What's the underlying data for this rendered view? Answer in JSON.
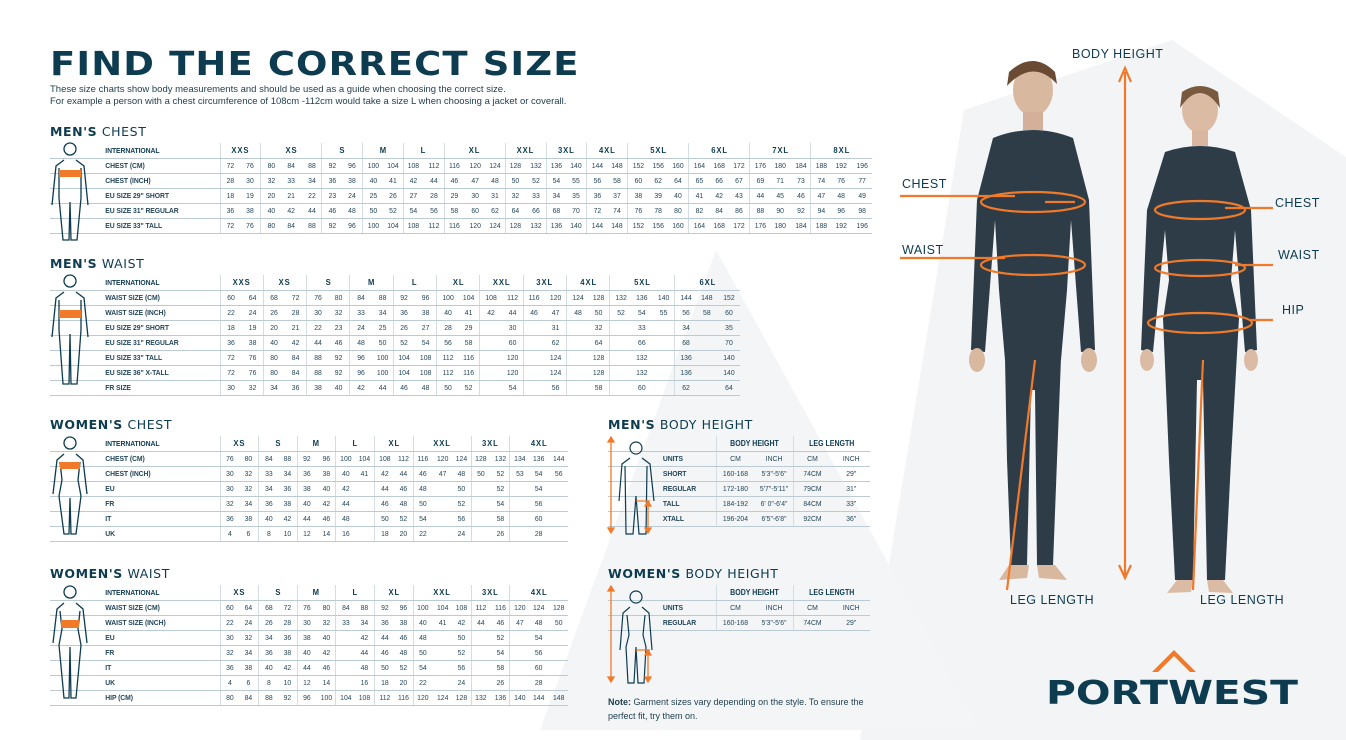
{
  "title": "FIND THE CORRECT SIZE",
  "intro": [
    "These size charts show body measurements and should be used as a guide when choosing the correct size.",
    "For example a person with a chest circumference of 108cm -112cm would take a size L when choosing a jacket or coverall."
  ],
  "colors": {
    "navy": "#0d3b4f",
    "orange": "#f07a2a",
    "line": "#bccbd3"
  },
  "tables": {
    "mens_chest": {
      "heading_bold": "MEN'S",
      "heading_light": "CHEST",
      "header_label": "INTERNATIONAL",
      "groups": [
        [
          "XXS",
          2
        ],
        [
          "XS",
          3
        ],
        [
          "S",
          2
        ],
        [
          "M",
          2
        ],
        [
          "L",
          2
        ],
        [
          "XL",
          3
        ],
        [
          "XXL",
          2
        ],
        [
          "3XL",
          2
        ],
        [
          "4XL",
          2
        ],
        [
          "5XL",
          3
        ],
        [
          "6XL",
          3
        ],
        [
          "7XL",
          3
        ],
        [
          "8XL",
          3
        ]
      ],
      "rows": [
        {
          "label": "CHEST (CM)",
          "cells": [
            "72",
            "76",
            "80",
            "84",
            "88",
            "92",
            "96",
            "100",
            "104",
            "108",
            "112",
            "116",
            "120",
            "124",
            "128",
            "132",
            "136",
            "140",
            "144",
            "148",
            "152",
            "156",
            "160",
            "164",
            "168",
            "172",
            "176",
            "180",
            "184",
            "188",
            "192",
            "196"
          ]
        },
        {
          "label": "CHEST (INCH)",
          "cells": [
            "28",
            "30",
            "32",
            "33",
            "34",
            "36",
            "38",
            "40",
            "41",
            "42",
            "44",
            "46",
            "47",
            "48",
            "50",
            "52",
            "54",
            "55",
            "56",
            "58",
            "60",
            "62",
            "64",
            "65",
            "66",
            "67",
            "69",
            "71",
            "73",
            "74",
            "76",
            "77"
          ]
        },
        {
          "label": "EU SIZE 29\" SHORT",
          "cells": [
            "18",
            "19",
            "20",
            "21",
            "22",
            "23",
            "24",
            "25",
            "26",
            "27",
            "28",
            "29",
            "30",
            "31",
            "32",
            "33",
            "34",
            "35",
            "36",
            "37",
            "38",
            "39",
            "40",
            "41",
            "42",
            "43",
            "44",
            "45",
            "46",
            "47",
            "48",
            "49"
          ]
        },
        {
          "label": "EU SIZE 31\" REGULAR",
          "cells": [
            "36",
            "38",
            "40",
            "42",
            "44",
            "46",
            "48",
            "50",
            "52",
            "54",
            "56",
            "58",
            "60",
            "62",
            "64",
            "66",
            "68",
            "70",
            "72",
            "74",
            "76",
            "78",
            "80",
            "82",
            "84",
            "86",
            "88",
            "90",
            "92",
            "94",
            "96",
            "98"
          ]
        },
        {
          "label": "EU SIZE 33\" TALL",
          "cells": [
            "72",
            "76",
            "80",
            "84",
            "88",
            "92",
            "96",
            "100",
            "104",
            "108",
            "112",
            "116",
            "120",
            "124",
            "128",
            "132",
            "136",
            "140",
            "144",
            "148",
            "152",
            "156",
            "160",
            "164",
            "168",
            "172",
            "176",
            "180",
            "184",
            "188",
            "192",
            "196"
          ]
        }
      ]
    },
    "mens_waist": {
      "heading_bold": "MEN'S",
      "heading_light": "WAIST",
      "header_label": "INTERNATIONAL",
      "groups": [
        [
          "XXS",
          2
        ],
        [
          "XS",
          2
        ],
        [
          "S",
          2
        ],
        [
          "M",
          2
        ],
        [
          "L",
          2
        ],
        [
          "XL",
          2
        ],
        [
          "XXL",
          2
        ],
        [
          "3XL",
          2
        ],
        [
          "4XL",
          2
        ],
        [
          "5XL",
          3
        ],
        [
          "6XL",
          3
        ]
      ],
      "rows": [
        {
          "label": "WAIST SIZE (CM)",
          "cells": [
            "60",
            "64",
            "68",
            "72",
            "76",
            "80",
            "84",
            "88",
            "92",
            "96",
            "100",
            "104",
            "108",
            "112",
            "116",
            "120",
            "124",
            "128",
            "132",
            "136",
            "140",
            "144",
            "148",
            "152"
          ]
        },
        {
          "label": "WAIST SIZE (INCH)",
          "cells": [
            "22",
            "24",
            "26",
            "28",
            "30",
            "32",
            "33",
            "34",
            "36",
            "38",
            "40",
            "41",
            "42",
            "44",
            "46",
            "47",
            "48",
            "50",
            "52",
            "54",
            "55",
            "56",
            "58",
            "60"
          ]
        },
        {
          "label": "EU SIZE 29\" SHORT",
          "cells": [
            "18",
            "19",
            "20",
            "21",
            "22",
            "23",
            "24",
            "25",
            "26",
            "27",
            "28",
            "29",
            "",
            "30",
            "",
            "31",
            "",
            "32",
            "",
            "33",
            "",
            "34",
            "",
            "35"
          ]
        },
        {
          "label": "EU SIZE 31\" REGULAR",
          "cells": [
            "36",
            "38",
            "40",
            "42",
            "44",
            "46",
            "48",
            "50",
            "52",
            "54",
            "56",
            "58",
            "",
            "60",
            "",
            "62",
            "",
            "64",
            "",
            "66",
            "",
            "68",
            "",
            "70"
          ]
        },
        {
          "label": "EU SIZE 33\" TALL",
          "cells": [
            "72",
            "76",
            "80",
            "84",
            "88",
            "92",
            "96",
            "100",
            "104",
            "108",
            "112",
            "116",
            "",
            "120",
            "",
            "124",
            "",
            "128",
            "",
            "132",
            "",
            "136",
            "",
            "140"
          ]
        },
        {
          "label": "EU SIZE 36\" X-TALL",
          "cells": [
            "72",
            "76",
            "80",
            "84",
            "88",
            "92",
            "96",
            "100",
            "104",
            "108",
            "112",
            "116",
            "",
            "120",
            "",
            "124",
            "",
            "128",
            "",
            "132",
            "",
            "136",
            "",
            "140"
          ]
        },
        {
          "label": "FR SIZE",
          "cells": [
            "30",
            "32",
            "34",
            "36",
            "38",
            "40",
            "42",
            "44",
            "46",
            "48",
            "50",
            "52",
            "",
            "54",
            "",
            "56",
            "",
            "58",
            "",
            "60",
            "",
            "62",
            "",
            "64"
          ]
        }
      ]
    },
    "womens_chest": {
      "heading_bold": "WOMEN'S",
      "heading_light": "CHEST",
      "header_label": "INTERNATIONAL",
      "groups": [
        [
          "XS",
          2
        ],
        [
          "S",
          2
        ],
        [
          "M",
          2
        ],
        [
          "L",
          2
        ],
        [
          "XL",
          2
        ],
        [
          "XXL",
          3
        ],
        [
          "3XL",
          2
        ],
        [
          "4XL",
          3
        ]
      ],
      "rows": [
        {
          "label": "CHEST (CM)",
          "cells": [
            "76",
            "80",
            "84",
            "88",
            "92",
            "96",
            "100",
            "104",
            "108",
            "112",
            "116",
            "120",
            "124",
            "128",
            "132",
            "134",
            "136",
            "144"
          ]
        },
        {
          "label": "CHEST (INCH)",
          "cells": [
            "30",
            "32",
            "33",
            "34",
            "36",
            "38",
            "40",
            "41",
            "42",
            "44",
            "46",
            "47",
            "48",
            "50",
            "52",
            "53",
            "54",
            "56"
          ]
        },
        {
          "label": "EU",
          "cells": [
            "30",
            "32",
            "34",
            "36",
            "38",
            "40",
            "42",
            "",
            "44",
            "46",
            "48",
            "",
            "50",
            "",
            "52",
            "",
            "54",
            ""
          ]
        },
        {
          "label": "FR",
          "cells": [
            "32",
            "34",
            "36",
            "38",
            "40",
            "42",
            "44",
            "",
            "46",
            "48",
            "50",
            "",
            "52",
            "",
            "54",
            "",
            "56",
            ""
          ]
        },
        {
          "label": "IT",
          "cells": [
            "36",
            "38",
            "40",
            "42",
            "44",
            "46",
            "48",
            "",
            "50",
            "52",
            "54",
            "",
            "56",
            "",
            "58",
            "",
            "60",
            ""
          ]
        },
        {
          "label": "UK",
          "cells": [
            "4",
            "6",
            "8",
            "10",
            "12",
            "14",
            "16",
            "",
            "18",
            "20",
            "22",
            "",
            "24",
            "",
            "26",
            "",
            "28",
            ""
          ]
        }
      ]
    },
    "womens_waist": {
      "heading_bold": "WOMEN'S",
      "heading_light": "WAIST",
      "header_label": "INTERNATIONAL",
      "groups": [
        [
          "XS",
          2
        ],
        [
          "S",
          2
        ],
        [
          "M",
          2
        ],
        [
          "L",
          2
        ],
        [
          "XL",
          2
        ],
        [
          "XXL",
          3
        ],
        [
          "3XL",
          2
        ],
        [
          "4XL",
          3
        ]
      ],
      "rows": [
        {
          "label": "WAIST SIZE (CM)",
          "cells": [
            "60",
            "64",
            "68",
            "72",
            "76",
            "80",
            "84",
            "88",
            "92",
            "96",
            "100",
            "104",
            "108",
            "112",
            "116",
            "120",
            "124",
            "128"
          ]
        },
        {
          "label": "WAIST SIZE (INCH)",
          "cells": [
            "22",
            "24",
            "26",
            "28",
            "30",
            "32",
            "33",
            "34",
            "36",
            "38",
            "40",
            "41",
            "42",
            "44",
            "46",
            "47",
            "48",
            "50"
          ]
        },
        {
          "label": "EU",
          "cells": [
            "30",
            "32",
            "34",
            "36",
            "38",
            "40",
            "",
            "42",
            "44",
            "46",
            "48",
            "",
            "50",
            "",
            "52",
            "",
            "54",
            ""
          ]
        },
        {
          "label": "FR",
          "cells": [
            "32",
            "34",
            "36",
            "38",
            "40",
            "42",
            "",
            "44",
            "46",
            "48",
            "50",
            "",
            "52",
            "",
            "54",
            "",
            "56",
            ""
          ]
        },
        {
          "label": "IT",
          "cells": [
            "36",
            "38",
            "40",
            "42",
            "44",
            "46",
            "",
            "48",
            "50",
            "52",
            "54",
            "",
            "56",
            "",
            "58",
            "",
            "60",
            ""
          ]
        },
        {
          "label": "UK",
          "cells": [
            "4",
            "6",
            "8",
            "10",
            "12",
            "14",
            "",
            "16",
            "18",
            "20",
            "22",
            "",
            "24",
            "",
            "26",
            "",
            "28",
            ""
          ]
        },
        {
          "label": "HIP (CM)",
          "cells": [
            "80",
            "84",
            "88",
            "92",
            "96",
            "100",
            "104",
            "108",
            "112",
            "116",
            "120",
            "124",
            "128",
            "132",
            "136",
            "140",
            "144",
            "148"
          ]
        }
      ]
    },
    "mens_height": {
      "heading_bold": "MEN'S",
      "heading_light": "BODY HEIGHT",
      "groups": [
        [
          "",
          1
        ],
        [
          "BODY HEIGHT",
          2
        ],
        [
          "LEG LENGTH",
          2
        ]
      ],
      "rows": [
        {
          "label": "UNITS",
          "cells": [
            "CM",
            "INCH",
            "CM",
            "INCH"
          ]
        },
        {
          "label": "SHORT",
          "cells": [
            "160-168",
            "5'3\"-5'6\"",
            "74CM",
            "29\""
          ]
        },
        {
          "label": "REGULAR",
          "cells": [
            "172-180",
            "5'7\"-5'11\"",
            "79CM",
            "31\""
          ]
        },
        {
          "label": "TALL",
          "cells": [
            "184-192",
            "6' 0\"-6'4\"",
            "84CM",
            "33\""
          ]
        },
        {
          "label": "XTALL",
          "cells": [
            "196-204",
            "6'5\"-6'8\"",
            "92CM",
            "36\""
          ]
        }
      ]
    },
    "womens_height": {
      "heading_bold": "WOMEN'S",
      "heading_light": "BODY HEIGHT",
      "groups": [
        [
          "",
          1
        ],
        [
          "BODY HEIGHT",
          2
        ],
        [
          "LEG LENGTH",
          2
        ]
      ],
      "rows": [
        {
          "label": "UNITS",
          "cells": [
            "CM",
            "INCH",
            "CM",
            "INCH"
          ]
        },
        {
          "label": "REGULAR",
          "cells": [
            "160-168",
            "5'3\"-5'6\"",
            "74CM",
            "29\""
          ]
        }
      ]
    }
  },
  "note": {
    "bold": "Note:",
    "text": " Garment sizes vary depending on the style. To ensure the perfect fit, try them on."
  },
  "figure_labels": {
    "body_height": "BODY HEIGHT",
    "chest_m": "CHEST",
    "waist_m": "WAIST",
    "chest_w": "CHEST",
    "waist_w": "WAIST",
    "hip_w": "HIP",
    "leg_m": "LEG LENGTH",
    "leg_w": "LEG LENGTH"
  },
  "brand": "PORTWEST"
}
